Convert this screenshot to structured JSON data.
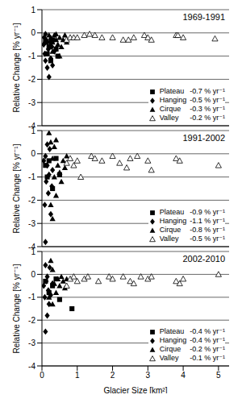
{
  "chart_data": [
    {
      "type": "scatter",
      "title": "1969-1991",
      "y_label": "Relative Change [% yr⁻¹]",
      "xlim": [
        0,
        5.3
      ],
      "xticks": [
        0,
        1,
        2,
        3,
        4,
        5
      ],
      "ylim": [
        -4,
        1
      ],
      "yticks": [
        1,
        0,
        -1,
        -2,
        -3,
        -4
      ],
      "grid": true,
      "tick_labels": "y",
      "legend": "lower right",
      "series": [
        {
          "name": "Plateau",
          "rate_label": "-0.7 % yr⁻¹",
          "color": "#000000",
          "marker": "square",
          "x": [
            0.1,
            0.15,
            0.2,
            0.25,
            0.3,
            0.4,
            0.45
          ],
          "values": [
            -0.4,
            -0.9,
            -0.6,
            -1.2,
            -0.3,
            -0.7,
            -1.0
          ]
        },
        {
          "name": "Hanging",
          "rate_label": "-0.5 % yr⁻¹",
          "color": "#000000",
          "marker": "diamond",
          "x": [
            0.05,
            0.08,
            0.1,
            0.12,
            0.15,
            0.18,
            0.2,
            0.22,
            0.25,
            0.28,
            0.3,
            0.06,
            0.1,
            0.35,
            0.15
          ],
          "values": [
            -0.5,
            -0.9,
            -1.2,
            -0.3,
            -1.5,
            -0.7,
            -1.9,
            -0.4,
            -1.1,
            -0.6,
            -1.4,
            -0.2,
            -0.05,
            -0.8,
            -0.4
          ]
        },
        {
          "name": "Cirque",
          "rate_label": "-0.3 % yr⁻¹",
          "color": "#000000",
          "marker": "triangle",
          "x": [
            0.25,
            0.3,
            0.35,
            0.4,
            0.45,
            0.5,
            0.55,
            0.6,
            0.65,
            0.7,
            0.3,
            0.2,
            0.4,
            0.5
          ],
          "values": [
            -0.2,
            -0.4,
            -0.1,
            -0.3,
            -0.5,
            -0.2,
            -0.6,
            -0.3,
            -0.1,
            -0.4,
            -0.8,
            -0.1,
            -0.05,
            -1.0
          ]
        },
        {
          "name": "Valley",
          "rate_label": "-0.2 % yr⁻¹",
          "color": "#000000",
          "marker": "triangle-open",
          "x": [
            0.7,
            0.8,
            0.9,
            1.0,
            1.2,
            1.35,
            1.5,
            1.7,
            2.0,
            2.3,
            2.45,
            2.6,
            2.9,
            3.0,
            3.1,
            3.8,
            3.85,
            4.0,
            4.9
          ],
          "values": [
            -0.3,
            -0.2,
            -0.2,
            -0.2,
            -0.1,
            -0.05,
            -0.1,
            -0.2,
            -0.2,
            -0.3,
            -0.3,
            -0.2,
            -0.1,
            -0.2,
            -0.3,
            -0.1,
            -0.1,
            -0.2,
            -0.25
          ]
        }
      ]
    },
    {
      "type": "scatter",
      "title": "1991-2002",
      "y_label": "Relative Change [% yr⁻¹]",
      "xlim": [
        0,
        5.3
      ],
      "xticks": [
        0,
        1,
        2,
        3,
        4,
        5
      ],
      "ylim": [
        -4,
        1
      ],
      "yticks": [
        1,
        0,
        -1,
        -2,
        -3,
        -4
      ],
      "grid": true,
      "tick_labels": "y",
      "legend": "lower right",
      "series": [
        {
          "name": "Plateau",
          "rate_label": "-0.9 % yr⁻¹",
          "color": "#000000",
          "marker": "square",
          "x": [
            0.1,
            0.15,
            0.2,
            0.3,
            0.5,
            0.4
          ],
          "values": [
            -0.5,
            -1.0,
            -0.3,
            -1.5,
            -0.9,
            -0.2
          ]
        },
        {
          "name": "Hanging",
          "rate_label": "-1.1 % yr⁻¹",
          "color": "#000000",
          "marker": "diamond",
          "x": [
            0.05,
            0.08,
            0.1,
            0.12,
            0.15,
            0.18,
            0.2,
            0.22,
            0.25,
            0.28,
            0.3,
            0.15,
            0.1
          ],
          "values": [
            -0.3,
            -2.2,
            -3.8,
            -1.2,
            -0.5,
            -1.7,
            -0.9,
            0.2,
            -2.6,
            -1.4,
            -0.7,
            0.4,
            -0.1
          ]
        },
        {
          "name": "Cirque",
          "rate_label": "-0.8 % yr⁻¹",
          "color": "#000000",
          "marker": "triangle",
          "x": [
            0.2,
            0.25,
            0.3,
            0.35,
            0.4,
            0.45,
            0.5,
            0.55,
            0.6,
            0.25,
            0.3,
            0.35,
            0.65,
            0.7,
            0.4
          ],
          "values": [
            0.9,
            0.5,
            -0.2,
            -1.0,
            -1.8,
            -0.5,
            -0.8,
            -1.2,
            -0.3,
            -2.2,
            -2.8,
            0.3,
            -0.6,
            -0.1,
            0.6
          ]
        },
        {
          "name": "Valley",
          "rate_label": "-0.5 % yr⁻¹",
          "color": "#000000",
          "marker": "triangle-open",
          "x": [
            0.7,
            0.8,
            0.9,
            1.0,
            1.1,
            1.4,
            1.5,
            1.7,
            2.0,
            2.2,
            2.4,
            2.5,
            2.7,
            3.0,
            3.1,
            3.8,
            3.9,
            5.0
          ],
          "values": [
            -0.4,
            -0.2,
            -0.5,
            -0.3,
            -1.0,
            -0.1,
            -0.2,
            -0.3,
            -0.1,
            -0.4,
            -0.6,
            -0.2,
            -0.1,
            -0.3,
            -0.7,
            -0.2,
            -0.3,
            -0.5
          ]
        }
      ]
    },
    {
      "type": "scatter",
      "title": "2002-2010",
      "x_label": "Glacier Size [km²]",
      "y_label": "Relative Change [% yr⁻¹]",
      "xlim": [
        0,
        5.3
      ],
      "xticks": [
        0,
        1,
        2,
        3,
        4,
        5
      ],
      "ylim": [
        -4,
        1
      ],
      "yticks": [
        1,
        0,
        -1,
        -2,
        -3,
        -4
      ],
      "grid": true,
      "legend": "lower right",
      "series": [
        {
          "name": "Plateau",
          "rate_label": "-0.4 % yr⁻¹",
          "color": "#000000",
          "marker": "square",
          "x": [
            0.1,
            0.2,
            0.3,
            0.5,
            0.85,
            0.4
          ],
          "values": [
            -0.3,
            -0.8,
            -0.5,
            -1.1,
            -1.5,
            -0.2
          ]
        },
        {
          "name": "Hanging",
          "rate_label": "-0.4 % yr⁻¹",
          "color": "#000000",
          "marker": "diamond",
          "x": [
            0.05,
            0.08,
            0.1,
            0.12,
            0.15,
            0.18,
            0.2,
            0.22,
            0.25,
            0.3,
            0.1,
            0.15
          ],
          "values": [
            -0.5,
            -1.0,
            -2.5,
            -0.3,
            -1.8,
            -0.7,
            -1.3,
            0.3,
            -0.9,
            -0.4,
            0.4,
            -0.1
          ]
        },
        {
          "name": "Cirque",
          "rate_label": "-0.2 % yr⁻¹",
          "color": "#000000",
          "marker": "triangle",
          "x": [
            0.25,
            0.3,
            0.35,
            0.4,
            0.45,
            0.5,
            0.55,
            0.6,
            0.65,
            0.2,
            0.3,
            0.7
          ],
          "values": [
            0.6,
            0.2,
            -0.4,
            -0.8,
            -0.2,
            -0.5,
            -0.1,
            -0.3,
            -0.6,
            -1.0,
            -1.3,
            -0.2
          ]
        },
        {
          "name": "Valley",
          "rate_label": "-0.1 % yr⁻¹",
          "color": "#000000",
          "marker": "triangle-open",
          "x": [
            0.7,
            0.8,
            0.9,
            1.0,
            1.2,
            1.3,
            1.6,
            1.9,
            2.0,
            2.3,
            2.5,
            2.6,
            2.8,
            3.0,
            3.1,
            3.8,
            3.9,
            4.0,
            5.0
          ],
          "values": [
            -0.5,
            -0.2,
            -0.1,
            -0.3,
            -0.2,
            -0.1,
            -0.3,
            -0.1,
            -0.2,
            -0.1,
            -0.3,
            -0.4,
            -0.1,
            -0.2,
            -0.1,
            -0.3,
            -0.4,
            -0.2,
            0.0
          ]
        }
      ]
    }
  ]
}
